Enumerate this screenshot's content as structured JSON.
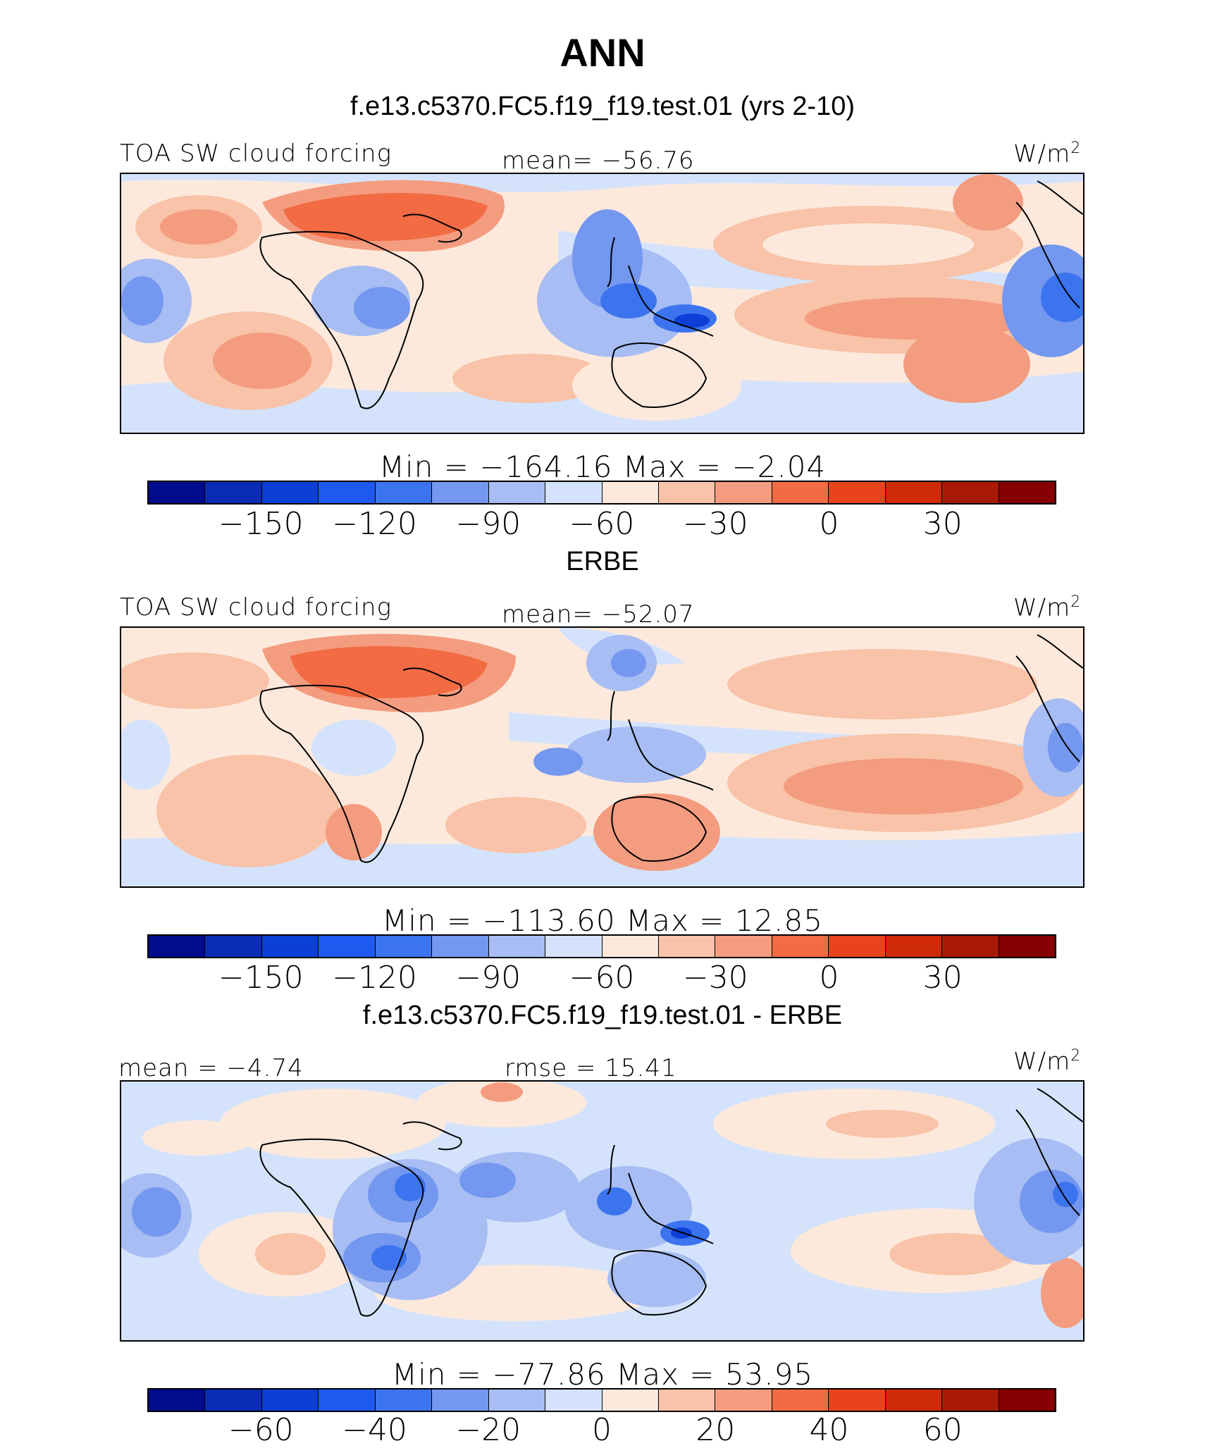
{
  "title": "ANN",
  "panels": [
    {
      "heading": "f.e13.c5370.FC5.f19_f19.test.01 (yrs 2-10)",
      "left_label": "TOA SW cloud forcing",
      "center_label": "mean= −56.76",
      "units": "W/m",
      "units_sup": "2",
      "minmax": "Min  =  −164.16  Max  =   −2.04",
      "colorbar_ticks": [
        "−150",
        "−120",
        "−90",
        "−60",
        "−30",
        "0",
        "30"
      ]
    },
    {
      "heading": "ERBE",
      "left_label": "TOA SW cloud forcing",
      "center_label": "mean= −52.07",
      "units": "W/m",
      "units_sup": "2",
      "minmax": "Min  =  −113.60  Max  =   12.85",
      "colorbar_ticks": [
        "−150",
        "−120",
        "−90",
        "−60",
        "−30",
        "0",
        "30"
      ]
    },
    {
      "heading": "f.e13.c5370.FC5.f19_f19.test.01 - ERBE",
      "left_label": "mean  =   −4.74",
      "center_label": "rmse  =   15.41",
      "units": "W/m",
      "units_sup": "2",
      "minmax": "Min  =  −77.86  Max  =   53.95",
      "colorbar_ticks": [
        "−60",
        "−40",
        "−20",
        "0",
        "20",
        "40",
        "60"
      ]
    }
  ],
  "colors": {
    "colorbar": [
      "#000c8a",
      "#0a2cb4",
      "#0b3fd6",
      "#1f59ef",
      "#3c74ef",
      "#7497ef",
      "#a7bdf3",
      "#d4e3fb",
      "#fde9dc",
      "#f8c3a8",
      "#f49c7f",
      "#f26b43",
      "#e8431b",
      "#cf2a0a",
      "#a81a05",
      "#850000"
    ]
  },
  "chart_data": [
    {
      "type": "heatmap",
      "title": "f.e13.c5370.FC5.f19_f19.test.01 (yrs 2-10)",
      "variable": "TOA SW cloud forcing",
      "units": "W/m2",
      "mean": -56.76,
      "min": -164.16,
      "max": -2.04,
      "colorbar_levels": [
        -165,
        -150,
        -135,
        -120,
        -105,
        -90,
        -75,
        -60,
        -45,
        -30,
        -15,
        0,
        15,
        30,
        45
      ],
      "colorbar_ticks": [
        -150,
        -120,
        -90,
        -60,
        -30,
        0,
        30
      ],
      "projection": "cylindrical equidistant, tropics 0E-360E, about 40S-40N"
    },
    {
      "type": "heatmap",
      "title": "ERBE",
      "variable": "TOA SW cloud forcing",
      "units": "W/m2",
      "mean": -52.07,
      "min": -113.6,
      "max": 12.85,
      "colorbar_levels": [
        -165,
        -150,
        -135,
        -120,
        -105,
        -90,
        -75,
        -60,
        -45,
        -30,
        -15,
        0,
        15,
        30,
        45
      ],
      "colorbar_ticks": [
        -150,
        -120,
        -90,
        -60,
        -30,
        0,
        30
      ]
    },
    {
      "type": "heatmap",
      "title": "f.e13.c5370.FC5.f19_f19.test.01 - ERBE",
      "variable": "difference",
      "units": "W/m2",
      "mean": -4.74,
      "rmse": 15.41,
      "min": -77.86,
      "max": 53.95,
      "colorbar_levels": [
        -70,
        -60,
        -50,
        -40,
        -30,
        -20,
        -10,
        0,
        10,
        20,
        30,
        40,
        50,
        60,
        70
      ],
      "colorbar_ticks": [
        -60,
        -40,
        -20,
        0,
        20,
        40,
        60
      ]
    }
  ]
}
